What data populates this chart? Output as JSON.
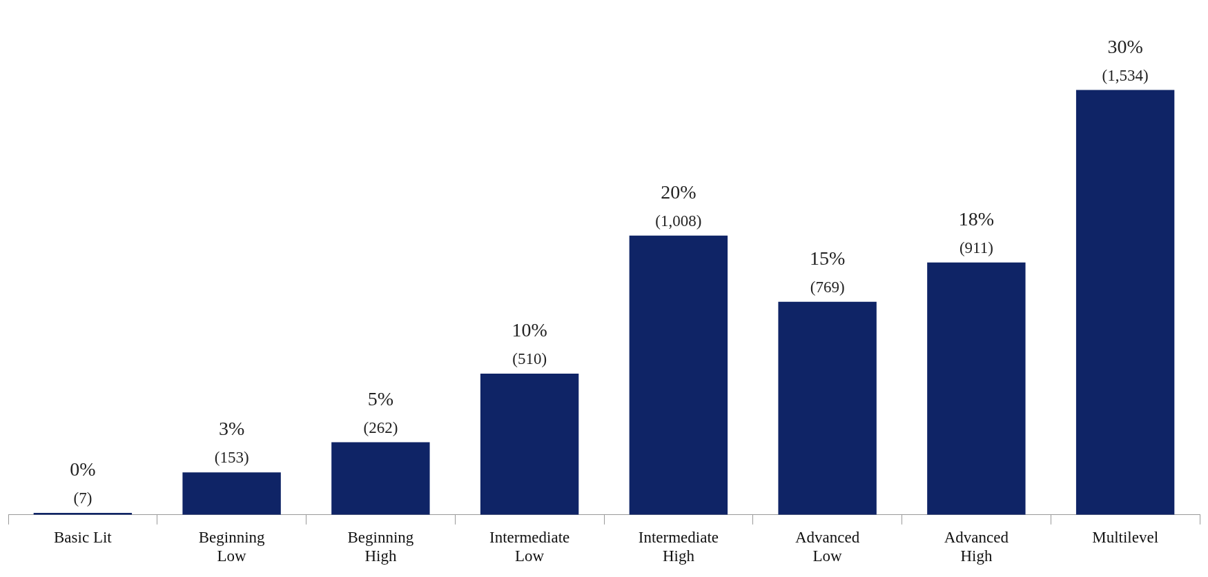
{
  "chart_data": {
    "type": "bar",
    "categories": [
      "Basic Lit",
      "Beginning Low",
      "Beginning High",
      "Intermediate Low",
      "Intermediate High",
      "Advanced Low",
      "Advanced High",
      "Multilevel"
    ],
    "values": [
      7,
      153,
      262,
      510,
      1008,
      769,
      911,
      1534
    ],
    "color": "#0f2466",
    "value_labels": [
      "0%\n(7)",
      "3%\n(153)",
      "5%\n(262)",
      "10%\n(510)",
      "20%\n(1,008)",
      "15%\n(769)",
      "18%\n(911)",
      "30%\n(1,534)"
    ],
    "grid": false,
    "legend": false
  }
}
